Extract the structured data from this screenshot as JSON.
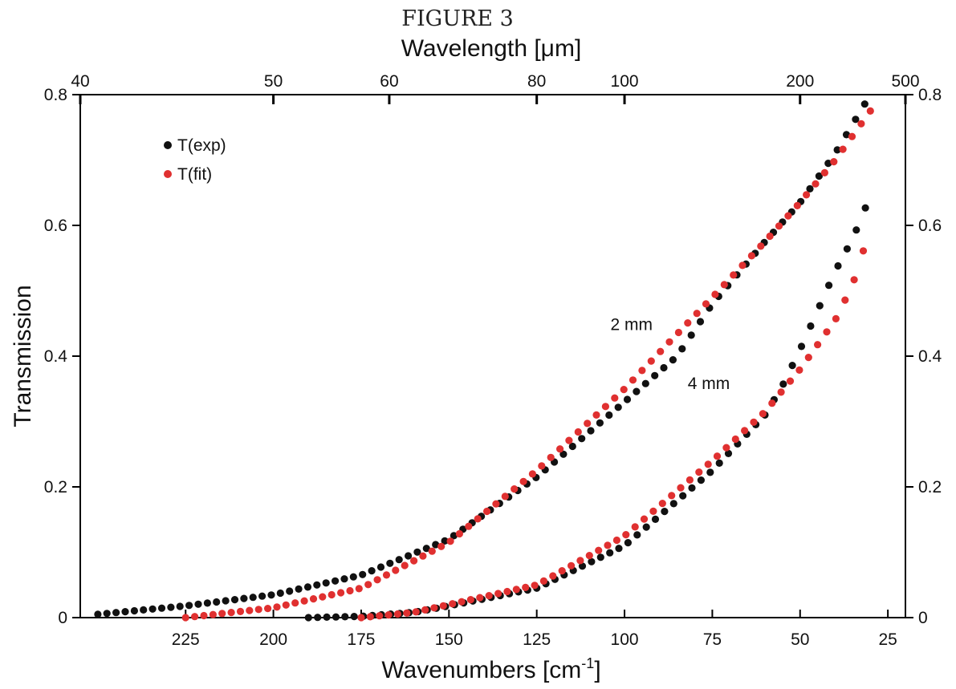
{
  "figure_label": "FIGURE 3",
  "chart_data": {
    "type": "scatter",
    "xlabel": "Wavenumbers [cm",
    "xlabel_superscript": "-1",
    "xlabel_close": "]",
    "ylabel": "Transmission",
    "top_axis_label": "Wavelength [μm]",
    "xlim": [
      20,
      255
    ],
    "ylim": [
      0,
      0.8
    ],
    "x_reversed": true,
    "x_ticks": [
      225,
      200,
      175,
      150,
      125,
      100,
      75,
      50,
      25
    ],
    "y_ticks": [
      {
        "value": 0,
        "label": "0"
      },
      {
        "value": 0.2,
        "label": "0.2"
      },
      {
        "value": 0.4,
        "label": "0.4"
      },
      {
        "value": 0.6,
        "label": "0.6"
      },
      {
        "value": 0.8,
        "label": "0.8"
      }
    ],
    "top_ticks": [
      {
        "label": "40",
        "wavenumber": 255
      },
      {
        "label": "50",
        "wavenumber": 200
      },
      {
        "label": "60",
        "wavenumber": 167
      },
      {
        "label": "80",
        "wavenumber": 125
      },
      {
        "label": "100",
        "wavenumber": 100
      },
      {
        "label": "200",
        "wavenumber": 50
      },
      {
        "label": "500",
        "wavenumber": 20
      }
    ],
    "legend": [
      {
        "label": "T(exp)",
        "color": "#111111"
      },
      {
        "label": "T(fit)",
        "color": "#e03030"
      }
    ],
    "annotations": [
      {
        "text": "2 mm",
        "x": 98,
        "y": 0.44
      },
      {
        "text": "4 mm",
        "x": 76,
        "y": 0.35
      }
    ],
    "series": [
      {
        "name": "T(exp)",
        "sample": "2 mm",
        "color": "#111111",
        "points": [
          [
            250,
            0.005
          ],
          [
            225,
            0.018
          ],
          [
            200,
            0.035
          ],
          [
            175,
            0.065
          ],
          [
            150,
            0.12
          ],
          [
            125,
            0.215
          ],
          [
            100,
            0.33
          ],
          [
            85,
            0.4
          ],
          [
            75,
            0.48
          ],
          [
            60,
            0.575
          ],
          [
            50,
            0.635
          ],
          [
            40,
            0.71
          ],
          [
            30,
            0.8
          ]
        ]
      },
      {
        "name": "T(fit)",
        "sample": "2 mm",
        "color": "#e03030",
        "points": [
          [
            225,
            0.0
          ],
          [
            200,
            0.015
          ],
          [
            175,
            0.045
          ],
          [
            150,
            0.115
          ],
          [
            125,
            0.225
          ],
          [
            100,
            0.35
          ],
          [
            75,
            0.49
          ],
          [
            60,
            0.575
          ],
          [
            50,
            0.635
          ],
          [
            40,
            0.7
          ],
          [
            30,
            0.775
          ]
        ]
      },
      {
        "name": "T(exp)",
        "sample": "4 mm",
        "color": "#111111",
        "points": [
          [
            190,
            0.0
          ],
          [
            175,
            0.002
          ],
          [
            160,
            0.008
          ],
          [
            150,
            0.018
          ],
          [
            125,
            0.045
          ],
          [
            100,
            0.11
          ],
          [
            75,
            0.225
          ],
          [
            60,
            0.31
          ],
          [
            55,
            0.355
          ],
          [
            50,
            0.41
          ],
          [
            45,
            0.47
          ],
          [
            40,
            0.53
          ],
          [
            35,
            0.58
          ],
          [
            30,
            0.645
          ]
        ]
      },
      {
        "name": "T(fit)",
        "sample": "4 mm",
        "color": "#e03030",
        "points": [
          [
            175,
            0.0
          ],
          [
            160,
            0.008
          ],
          [
            150,
            0.02
          ],
          [
            125,
            0.05
          ],
          [
            100,
            0.125
          ],
          [
            75,
            0.24
          ],
          [
            60,
            0.315
          ],
          [
            50,
            0.38
          ],
          [
            40,
            0.455
          ],
          [
            35,
            0.51
          ],
          [
            30,
            0.595
          ]
        ]
      }
    ]
  }
}
